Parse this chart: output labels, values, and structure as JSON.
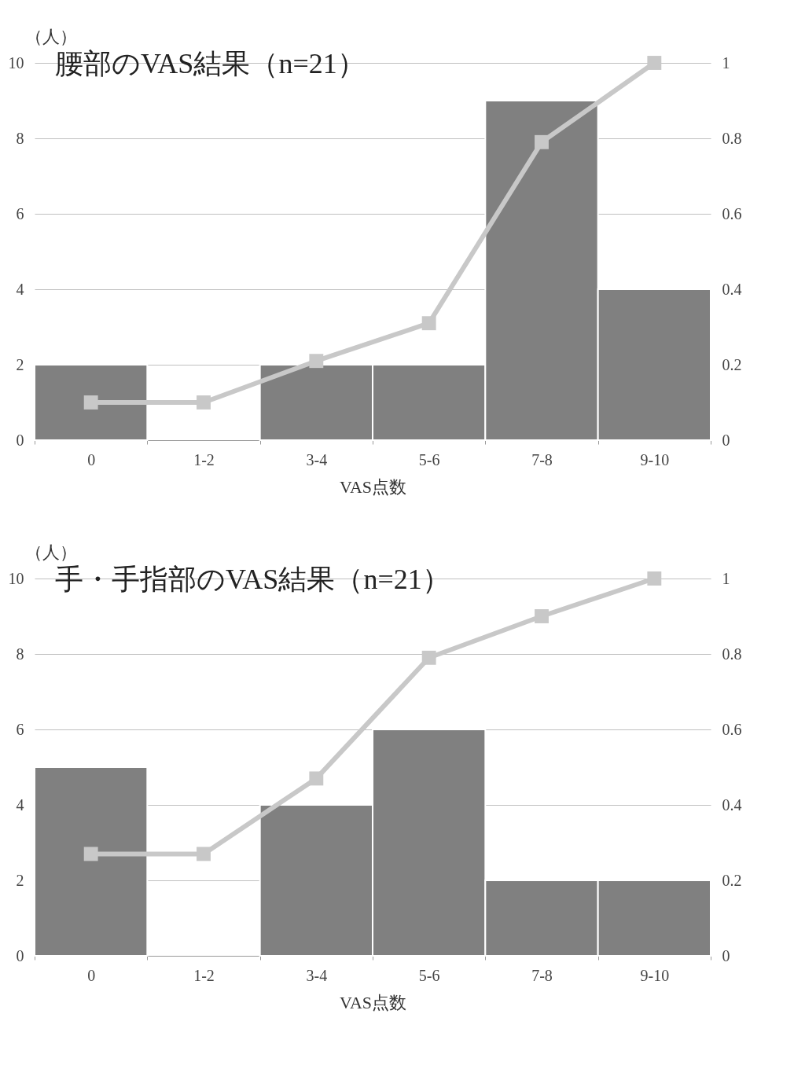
{
  "chart_data": [
    {
      "type": "bar",
      "title": "腰部のVAS結果（n=21）",
      "xlabel": "VAS点数",
      "ylabel": "（人）",
      "categories": [
        "0",
        "1-2",
        "3-4",
        "5-6",
        "7-8",
        "9-10"
      ],
      "series": [
        {
          "color": "#808080",
          "values": [
            2,
            0,
            2,
            2,
            9,
            4
          ]
        },
        {
          "type": "line",
          "axis": "y2",
          "color": "#c8c8c8",
          "values": [
            0.1,
            0.1,
            0.21,
            0.31,
            0.79,
            1
          ]
        }
      ],
      "ylim": [
        0,
        10
      ],
      "yticks": [
        0,
        2,
        4,
        6,
        8,
        10
      ],
      "y2lim": [
        0,
        1
      ],
      "y2ticks": [
        0,
        0.2,
        0.4,
        0.6,
        0.8,
        1
      ],
      "grid": "y",
      "marker": "square"
    },
    {
      "type": "bar",
      "title": "手・手指部のVAS結果（n=21）",
      "xlabel": "VAS点数",
      "ylabel": "（人）",
      "categories": [
        "0",
        "1-2",
        "3-4",
        "5-6",
        "7-8",
        "9-10"
      ],
      "series": [
        {
          "color": "#808080",
          "values": [
            5,
            0,
            4,
            6,
            2,
            2
          ]
        },
        {
          "type": "line",
          "axis": "y2",
          "color": "#c8c8c8",
          "values": [
            0.27,
            0.27,
            0.47,
            0.79,
            0.9,
            1
          ]
        }
      ],
      "ylim": [
        0,
        10
      ],
      "yticks": [
        0,
        2,
        4,
        6,
        8,
        10
      ],
      "y2lim": [
        0,
        1
      ],
      "y2ticks": [
        0,
        0.2,
        0.4,
        0.6,
        0.8,
        1
      ],
      "grid": "y",
      "marker": "square"
    }
  ]
}
